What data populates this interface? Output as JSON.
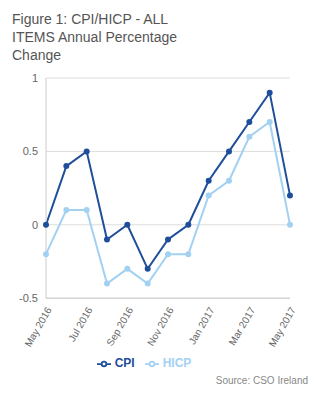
{
  "chart_data": {
    "type": "line",
    "title": "Figure 1: CPI/HICP - ALL ITEMS Annual Percentage Change",
    "source": "Source: CSO Ireland",
    "categories": [
      "May 2016",
      null,
      "Jul 2016",
      null,
      "Sep 2016",
      null,
      "Nov 2016",
      null,
      "Jan 2017",
      null,
      "Mar 2017",
      null,
      "May 2017"
    ],
    "series": [
      {
        "name": "CPI",
        "color": "#1f4e9a",
        "marker": "circle",
        "values": [
          0,
          0.4,
          0.5,
          -0.1,
          0,
          -0.3,
          -0.1,
          0,
          0.3,
          0.5,
          0.7,
          0.9,
          0.2
        ]
      },
      {
        "name": "HICP",
        "color": "#a3d1f2",
        "marker": "circle",
        "values": [
          -0.2,
          0.1,
          0.1,
          -0.4,
          -0.3,
          -0.4,
          -0.2,
          -0.2,
          0.2,
          0.3,
          0.6,
          0.7,
          0
        ]
      }
    ],
    "ylim": [
      -0.5,
      1
    ],
    "yticks": [
      -0.5,
      0,
      0.5,
      1
    ],
    "grid": true,
    "legend": "bottom"
  }
}
